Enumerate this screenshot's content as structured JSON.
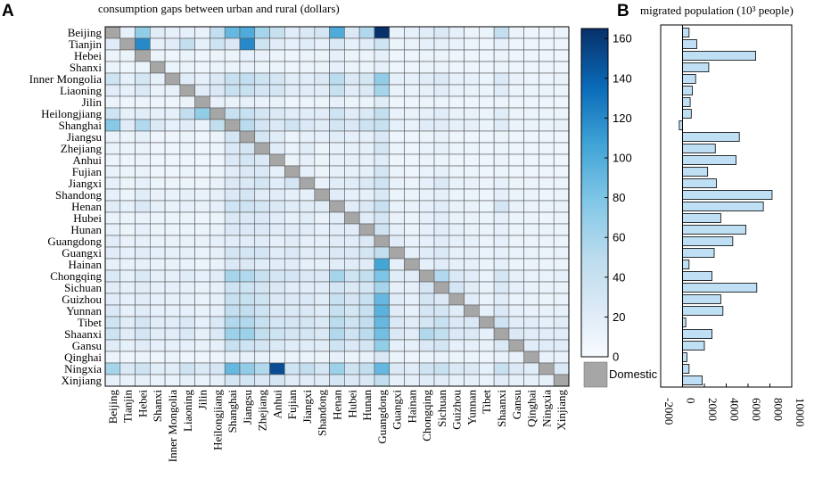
{
  "panels": {
    "a": {
      "letter": "A",
      "title": "consumption gaps between urban and rural (dollars)"
    },
    "b": {
      "letter": "B",
      "title": "migrated population (10³ people)"
    }
  },
  "domestic_label": "Domestic",
  "chart_data": [
    {
      "type": "heatmap",
      "title": "consumption gaps between urban and rural (dollars)",
      "provinces": [
        "Beijing",
        "Tianjin",
        "Hebei",
        "Shanxi",
        "Inner Mongolia",
        "Liaoning",
        "Jilin",
        "Heilongjiang",
        "Shanghai",
        "Jiangsu",
        "Zhejiang",
        "Anhui",
        "Fujian",
        "Jiangxi",
        "Shandong",
        "Henan",
        "Hubei",
        "Hunan",
        "Guangdong",
        "Guangxi",
        "Hainan",
        "Chongqing",
        "Sichuan",
        "Guizhou",
        "Yunnan",
        "Tibet",
        "Shaanxi",
        "Gansu",
        "Qinghai",
        "Ningxia",
        "Xinjiang"
      ],
      "colorbar": {
        "min": 0,
        "max": 165,
        "ticks": [
          0,
          20,
          40,
          60,
          80,
          100,
          120,
          140,
          160
        ]
      },
      "domestic_color": "#a6a6a6",
      "values": [
        [
          0,
          15,
          70,
          20,
          15,
          15,
          12,
          45,
          90,
          100,
          60,
          40,
          20,
          25,
          30,
          100,
          25,
          55,
          165,
          12,
          15,
          20,
          25,
          15,
          10,
          10,
          45,
          10,
          8,
          8,
          10
        ],
        [
          20,
          0,
          120,
          15,
          20,
          45,
          15,
          35,
          25,
          120,
          35,
          20,
          15,
          20,
          15,
          25,
          15,
          20,
          35,
          10,
          12,
          15,
          15,
          12,
          10,
          8,
          15,
          8,
          8,
          8,
          8
        ],
        [
          10,
          10,
          0,
          10,
          8,
          10,
          8,
          10,
          10,
          15,
          12,
          10,
          8,
          10,
          10,
          15,
          10,
          10,
          15,
          8,
          8,
          10,
          10,
          8,
          8,
          8,
          10,
          8,
          8,
          8,
          8
        ],
        [
          10,
          8,
          10,
          0,
          10,
          10,
          8,
          10,
          10,
          12,
          10,
          10,
          8,
          10,
          10,
          15,
          10,
          10,
          15,
          8,
          8,
          10,
          10,
          8,
          8,
          8,
          10,
          8,
          8,
          8,
          8
        ],
        [
          35,
          15,
          30,
          15,
          0,
          20,
          15,
          25,
          40,
          45,
          35,
          30,
          20,
          20,
          25,
          50,
          25,
          30,
          70,
          15,
          15,
          20,
          25,
          15,
          15,
          10,
          25,
          12,
          10,
          10,
          12
        ],
        [
          20,
          15,
          25,
          12,
          15,
          0,
          20,
          25,
          40,
          40,
          30,
          30,
          20,
          20,
          20,
          40,
          20,
          25,
          60,
          12,
          12,
          15,
          20,
          12,
          12,
          10,
          20,
          10,
          10,
          10,
          10
        ],
        [
          10,
          8,
          10,
          8,
          8,
          10,
          0,
          12,
          12,
          15,
          12,
          12,
          8,
          10,
          10,
          15,
          10,
          10,
          20,
          8,
          8,
          10,
          10,
          8,
          8,
          8,
          10,
          8,
          8,
          8,
          8
        ],
        [
          35,
          15,
          20,
          15,
          15,
          45,
          70,
          0,
          40,
          40,
          30,
          25,
          20,
          20,
          20,
          35,
          20,
          25,
          45,
          12,
          12,
          15,
          20,
          12,
          12,
          10,
          20,
          10,
          10,
          10,
          10
        ],
        [
          75,
          20,
          55,
          25,
          15,
          20,
          12,
          45,
          0,
          50,
          30,
          25,
          35,
          25,
          20,
          30,
          25,
          35,
          40,
          15,
          12,
          20,
          20,
          15,
          15,
          10,
          20,
          10,
          10,
          10,
          12
        ],
        [
          12,
          10,
          15,
          8,
          8,
          10,
          8,
          10,
          30,
          0,
          30,
          20,
          10,
          15,
          15,
          20,
          15,
          15,
          25,
          8,
          8,
          10,
          12,
          8,
          8,
          8,
          10,
          8,
          8,
          8,
          8
        ],
        [
          12,
          10,
          12,
          8,
          8,
          10,
          8,
          10,
          25,
          30,
          0,
          20,
          12,
          20,
          10,
          15,
          15,
          15,
          30,
          10,
          8,
          12,
          15,
          10,
          10,
          8,
          10,
          8,
          8,
          8,
          8
        ],
        [
          10,
          8,
          10,
          8,
          8,
          8,
          8,
          8,
          25,
          30,
          25,
          0,
          10,
          15,
          10,
          15,
          15,
          15,
          20,
          8,
          8,
          10,
          10,
          8,
          8,
          8,
          10,
          8,
          8,
          8,
          8
        ],
        [
          12,
          10,
          12,
          8,
          8,
          10,
          8,
          10,
          20,
          25,
          25,
          15,
          0,
          15,
          10,
          15,
          15,
          15,
          30,
          10,
          8,
          12,
          15,
          10,
          10,
          8,
          10,
          8,
          8,
          8,
          8
        ],
        [
          15,
          10,
          15,
          10,
          10,
          10,
          10,
          12,
          25,
          25,
          30,
          20,
          30,
          0,
          12,
          20,
          20,
          25,
          35,
          12,
          10,
          15,
          25,
          12,
          12,
          10,
          15,
          10,
          10,
          10,
          10
        ],
        [
          15,
          10,
          20,
          12,
          12,
          15,
          12,
          15,
          25,
          30,
          20,
          20,
          15,
          15,
          0,
          20,
          15,
          15,
          25,
          10,
          10,
          12,
          15,
          10,
          10,
          8,
          15,
          10,
          10,
          8,
          10
        ],
        [
          20,
          15,
          25,
          15,
          12,
          15,
          12,
          15,
          35,
          35,
          30,
          25,
          20,
          20,
          20,
          0,
          20,
          25,
          40,
          12,
          12,
          15,
          20,
          12,
          12,
          10,
          30,
          12,
          10,
          10,
          12
        ],
        [
          12,
          10,
          12,
          10,
          10,
          10,
          8,
          10,
          25,
          25,
          25,
          20,
          15,
          20,
          12,
          20,
          0,
          20,
          30,
          12,
          10,
          15,
          20,
          12,
          12,
          10,
          15,
          10,
          10,
          8,
          10
        ],
        [
          15,
          10,
          15,
          10,
          10,
          10,
          10,
          12,
          25,
          25,
          25,
          20,
          20,
          20,
          15,
          20,
          20,
          0,
          35,
          15,
          10,
          15,
          20,
          15,
          12,
          10,
          15,
          10,
          10,
          10,
          10
        ],
        [
          20,
          12,
          15,
          12,
          12,
          12,
          12,
          15,
          20,
          20,
          20,
          15,
          20,
          15,
          15,
          20,
          20,
          25,
          0,
          20,
          12,
          15,
          20,
          15,
          15,
          10,
          15,
          10,
          10,
          10,
          10
        ],
        [
          20,
          15,
          20,
          15,
          15,
          15,
          12,
          15,
          30,
          30,
          30,
          20,
          25,
          20,
          20,
          25,
          25,
          30,
          45,
          0,
          15,
          20,
          25,
          15,
          15,
          12,
          15,
          12,
          12,
          10,
          12
        ],
        [
          15,
          12,
          15,
          12,
          12,
          12,
          10,
          12,
          25,
          25,
          20,
          20,
          20,
          15,
          15,
          20,
          20,
          20,
          105,
          15,
          0,
          15,
          20,
          15,
          15,
          10,
          15,
          10,
          10,
          10,
          10
        ],
        [
          25,
          15,
          25,
          15,
          15,
          20,
          15,
          20,
          60,
          55,
          40,
          30,
          30,
          25,
          25,
          60,
          35,
          45,
          80,
          20,
          20,
          0,
          55,
          25,
          20,
          12,
          30,
          15,
          12,
          12,
          15
        ],
        [
          20,
          15,
          20,
          15,
          15,
          15,
          12,
          15,
          35,
          35,
          30,
          25,
          20,
          20,
          20,
          30,
          25,
          30,
          60,
          15,
          15,
          30,
          0,
          30,
          20,
          12,
          25,
          15,
          12,
          12,
          12
        ],
        [
          20,
          15,
          20,
          15,
          15,
          15,
          12,
          15,
          40,
          40,
          35,
          25,
          25,
          25,
          20,
          40,
          30,
          40,
          90,
          20,
          15,
          30,
          25,
          0,
          20,
          12,
          20,
          12,
          12,
          10,
          12
        ],
        [
          25,
          15,
          20,
          15,
          15,
          15,
          12,
          15,
          45,
          45,
          35,
          25,
          25,
          25,
          20,
          40,
          30,
          40,
          95,
          20,
          15,
          30,
          30,
          20,
          0,
          15,
          25,
          15,
          12,
          12,
          15
        ],
        [
          35,
          20,
          30,
          20,
          20,
          25,
          15,
          25,
          55,
          55,
          40,
          30,
          30,
          30,
          25,
          50,
          35,
          45,
          90,
          25,
          20,
          30,
          40,
          25,
          25,
          0,
          35,
          20,
          20,
          15,
          20
        ],
        [
          35,
          20,
          30,
          20,
          20,
          25,
          15,
          25,
          65,
          65,
          45,
          35,
          30,
          30,
          25,
          55,
          35,
          50,
          85,
          25,
          20,
          55,
          45,
          25,
          25,
          15,
          0,
          25,
          20,
          20,
          20
        ],
        [
          20,
          15,
          20,
          15,
          15,
          15,
          12,
          15,
          40,
          35,
          30,
          25,
          20,
          20,
          20,
          35,
          25,
          30,
          70,
          15,
          15,
          25,
          30,
          15,
          15,
          12,
          25,
          0,
          20,
          20,
          20
        ],
        [
          10,
          8,
          10,
          8,
          10,
          8,
          8,
          8,
          15,
          15,
          12,
          10,
          10,
          10,
          10,
          15,
          10,
          12,
          25,
          10,
          8,
          10,
          12,
          10,
          10,
          8,
          12,
          12,
          0,
          12,
          12
        ],
        [
          60,
          25,
          35,
          20,
          20,
          35,
          25,
          30,
          90,
          70,
          55,
          150,
          35,
          45,
          30,
          65,
          35,
          45,
          90,
          25,
          20,
          35,
          40,
          25,
          25,
          15,
          40,
          25,
          20,
          0,
          25
        ],
        [
          15,
          12,
          15,
          12,
          12,
          15,
          12,
          15,
          30,
          30,
          25,
          30,
          20,
          20,
          20,
          30,
          25,
          25,
          45,
          15,
          15,
          20,
          20,
          15,
          15,
          12,
          20,
          15,
          15,
          15,
          0
        ]
      ]
    },
    {
      "type": "bar",
      "orientation": "horizontal",
      "title": "migrated population (10³ people)",
      "categories": [
        "Beijing",
        "Tianjin",
        "Hebei",
        "Shanxi",
        "Inner Mongolia",
        "Liaoning",
        "Jilin",
        "Heilongjiang",
        "Shanghai",
        "Jiangsu",
        "Zhejiang",
        "Anhui",
        "Fujian",
        "Jiangxi",
        "Shandong",
        "Henan",
        "Hubei",
        "Hunan",
        "Guangdong",
        "Guangxi",
        "Hainan",
        "Chongqing",
        "Sichuan",
        "Guizhou",
        "Yunnan",
        "Tibet",
        "Shaanxi",
        "Gansu",
        "Qinghai",
        "Ningxia",
        "Xinjiang"
      ],
      "values": [
        600,
        1300,
        6700,
        2400,
        1200,
        900,
        700,
        800,
        -300,
        5200,
        3000,
        4900,
        2300,
        3100,
        8200,
        7400,
        3500,
        5800,
        4600,
        2900,
        600,
        2700,
        6800,
        3500,
        3700,
        300,
        2700,
        2000,
        400,
        600,
        1800
      ],
      "xlim": [
        -2000,
        10000
      ],
      "xticks": [
        -2000,
        0,
        2000,
        4000,
        6000,
        8000,
        10000
      ],
      "bar_color": "#bfe0f4"
    }
  ]
}
